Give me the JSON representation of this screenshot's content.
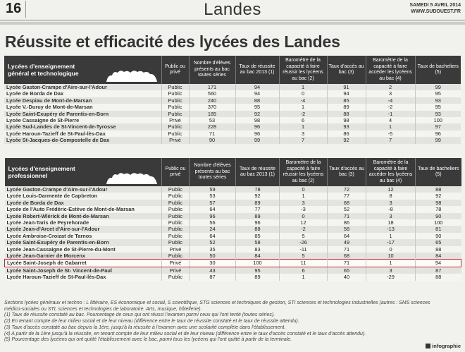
{
  "masthead": {
    "page_number": "16",
    "section": "Landes",
    "date": "SAMEDI 5 AVRIL 2014",
    "site": "WWW.SUDOUEST.FR"
  },
  "headline": "Réussite et efficacité des lycées des Landes",
  "table_general": {
    "group_label": "Lycées d'enseignement général et technologique",
    "headers": [
      "Public ou privé",
      "Nombre d'élèves présents au bac toutes séries",
      "Taux de réussite au bac 2013 (1)",
      "Baromètre de la capacité à faire réussir les lycéens au bac (2)",
      "Taux d'accès au bac (3)",
      "Baromètre de la capacité à faire accéder les lycéens au bac (4)",
      "Taux de bacheliers (5)"
    ],
    "rows": [
      [
        "Lycée Gaston-Crampe d'Aire-sur-l'Adour",
        "Public",
        "171",
        "94",
        "1",
        "91",
        "2",
        "99"
      ],
      [
        "Lycée de Borda de Dax",
        "Public",
        "560",
        "94",
        "0",
        "94",
        "3",
        "95"
      ],
      [
        "Lycée Despiau de Mont-de-Marsan",
        "Public",
        "240",
        "88",
        "-4",
        "85",
        "-4",
        "93"
      ],
      [
        "Lycée V.-Duruy de Mont-de-Marsan",
        "Public",
        "370",
        "95",
        "1",
        "89",
        "-2",
        "95"
      ],
      [
        "Lycée Saint-Exupéry de Parentis-en-Born",
        "Public",
        "185",
        "92",
        "-2",
        "88",
        "-1",
        "93"
      ],
      [
        "Lycée Cassaigne de St-Pierre",
        "Privé",
        "53",
        "98",
        "6",
        "98",
        "4",
        "100"
      ],
      [
        "Lycée Sud-Landes de St-Vincent-de-Tyrosse",
        "Public",
        "228",
        "96",
        "1",
        "93",
        "1",
        "97"
      ],
      [
        "Lycée Haroun-Tazieff de St-Paul-lès-Dax",
        "Public",
        "71",
        "96",
        "3",
        "86",
        "-5",
        "96"
      ],
      [
        "Lycée St-Jacques-de-Compostelle de Dax",
        "Privé",
        "90",
        "99",
        "7",
        "92",
        "7",
        "99"
      ]
    ]
  },
  "table_pro": {
    "group_label": "Lycées d'enseignement professionnel",
    "headers": [
      "Public ou privé",
      "Nombre d'élèves présents au bac toutes séries",
      "Taux de réussite au bac 2013 (1)",
      "Baromètre de la capacité à faire réussir les lycéens au bac (2)",
      "Taux d'accès au bac (3)",
      "Baromètre de la capacité à faire accéder les lycéens au bac (4)",
      "Taux de bacheliers (5)"
    ],
    "rows": [
      [
        "Lycée Gaston-Crampe d'Aire-sur-l'Adour",
        "Public",
        "59",
        "78",
        "0",
        "72",
        "12",
        "88"
      ],
      [
        "Lycée Louis-Darmente de Capbreton",
        "Public",
        "53",
        "92",
        "1",
        "77",
        "8",
        "92"
      ],
      [
        "Lycée de Borda de Dax",
        "Public",
        "57",
        "89",
        "3",
        "68",
        "3",
        "98"
      ],
      [
        "Lycée de l'Auto Frédéric-Estève de Mont-de-Marsan",
        "Public",
        "64",
        "77",
        "-3",
        "52",
        "-8",
        "78"
      ],
      [
        "Lycée Robert-Wlérick de Mont-de-Marsan",
        "Public",
        "96",
        "89",
        "0",
        "71",
        "3",
        "90"
      ],
      [
        "Lycée Jean-Taris de Peyrehorade",
        "Public",
        "56",
        "96",
        "12",
        "86",
        "18",
        "100"
      ],
      [
        "Lycée Jean-d'Arcet d'Aire-sur-l'Adour",
        "Public",
        "24",
        "88",
        "-2",
        "58",
        "-13",
        "81"
      ],
      [
        "Lycée Ambroise-Croizat de Tarnos",
        "Public",
        "64",
        "85",
        "5",
        "64",
        "1",
        "90"
      ],
      [
        "Lycée Saint-Exupéry de Parentis-en-Born",
        "Public",
        "52",
        "58",
        "-26",
        "49",
        "-17",
        "65"
      ],
      [
        "Lycée Jean-Cassaigne de St-Pierre-du-Mont",
        "Privé",
        "35",
        "83",
        "-11",
        "71",
        "0",
        "88"
      ],
      [
        "Lycée Jean-Garnier de Morcenx",
        "Public",
        "50",
        "84",
        "5",
        "68",
        "10",
        "84"
      ],
      [
        "Lycée Saint-Joseph de Gabarret",
        "Privé",
        "30",
        "100",
        "11",
        "71",
        "1",
        "94"
      ],
      [
        "Lycée Saint-Joseph de St- Vincent-de-Paul",
        "Privé",
        "43",
        "95",
        "6",
        "65",
        "3",
        "87"
      ],
      [
        "Lycée Haroun-Tazieff de St-Paul-lès-Dax",
        "Public",
        "87",
        "89",
        "1",
        "40",
        "-29",
        "88"
      ]
    ],
    "highlighted_row": 11
  },
  "footnotes": [
    "Sections lycées généraux et techno : L littéraire, ES économique et social, S scientifique, STG sciences et techniques de gestion, STI sciences et technologies industrielles (autres : SMS sciences",
    "médico-sociales ou STL sciences et technologies de laboratoire. Arts, musique, hôtellerie).",
    "(1) Taux de réussite constaté au bac. Pourcentage de ceux qui ont réussi l'examen parmi ceux qui l'ont tenté (toutes séries).",
    "(2) En tenant compte de leur milieu social et de leur niveau (différence entre le taux de réussite constaté et le taux de réussite attendu).",
    "(3) Taux d'accès constaté au bac depuis la 1ère, jusqu'à la réussite à l'examen avec une scolarité complète dans l'établissement.",
    "(4) A partir de la 1ère jusqu'à la réussite, en tenant compte de leur milieu social et de leur niveau (différence entre le taux d'accès constaté et le taux d'accès attendu).",
    "(5) Pourcentage des lycéens qui ont quitté l'établissement avec le bac, parmi tous les lycéens qui l'ont quitté à partir de la terminale."
  ],
  "brand": "infographie",
  "colors": {
    "header_bg": "#3a3a3a",
    "highlight": "#d8232a",
    "row_odd": "#e3e3df",
    "row_even": "#f4f4f1"
  }
}
